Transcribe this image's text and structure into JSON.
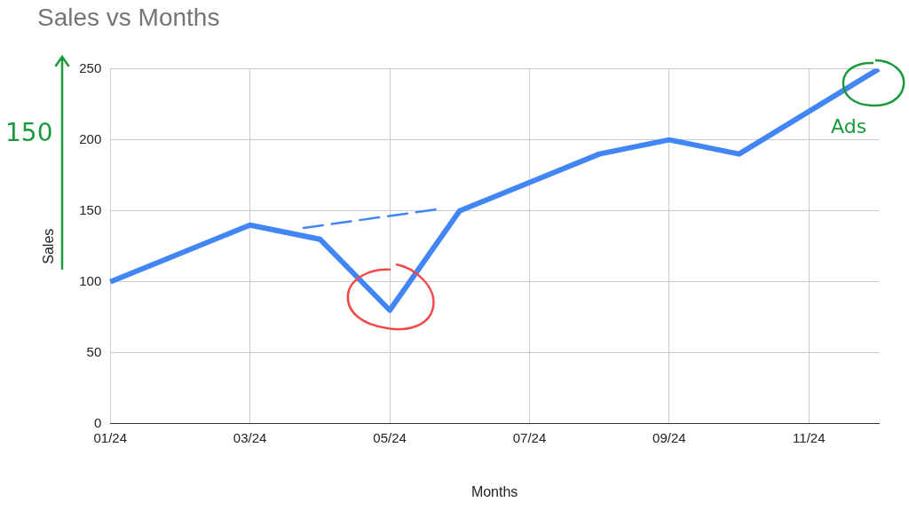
{
  "chart_data": {
    "type": "line",
    "title": "Sales vs Months",
    "xlabel": "Months",
    "ylabel": "Sales",
    "categories": [
      "01/24",
      null,
      "03/24",
      null,
      "05/24",
      null,
      "07/24",
      null,
      "09/24",
      null,
      "11/24",
      null
    ],
    "series": [
      {
        "color": "#4285f4",
        "values": [
          100,
          120,
          140,
          130,
          80,
          150,
          170,
          190,
          200,
          190,
          220,
          250
        ]
      }
    ],
    "ylim": [
      0,
      250
    ],
    "yticks": [
      0,
      50,
      100,
      150,
      200,
      250
    ],
    "grid": true,
    "legend": false,
    "marker": "none",
    "line_style": "solid",
    "annotations": [
      "150",
      "Ads"
    ]
  }
}
